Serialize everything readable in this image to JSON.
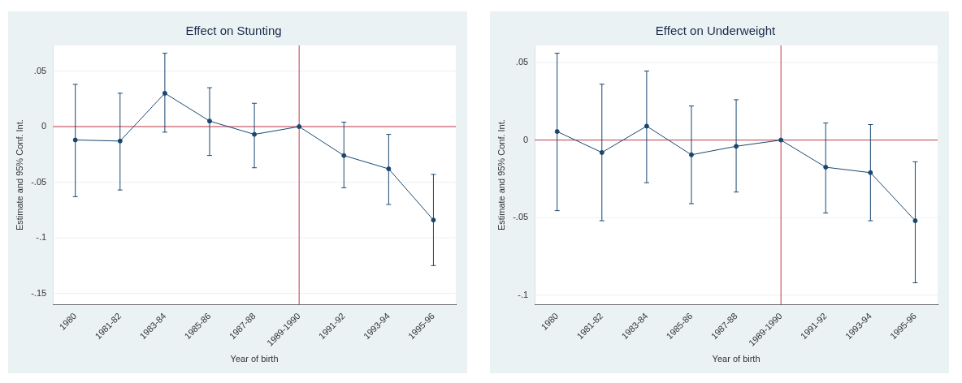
{
  "chart_data": [
    {
      "type": "line",
      "title": "Effect on Stunting",
      "xlabel": "Year of birth",
      "ylabel": "Estimate and 95% Conf. Int.",
      "categories": [
        "1980",
        "1981-82",
        "1983-84",
        "1985-86",
        "1987-88",
        "1989-1990",
        "1991-92",
        "1993-94",
        "1995-96"
      ],
      "series": [
        {
          "color": "#1a476f",
          "values": [
            -0.012,
            -0.013,
            0.03,
            0.005,
            -0.007,
            0,
            -0.026,
            -0.038,
            -0.084
          ],
          "errors": [
            [
              -0.063,
              0.038
            ],
            [
              -0.057,
              0.03
            ],
            [
              -0.005,
              0.066
            ],
            [
              -0.026,
              0.035
            ],
            [
              -0.037,
              0.021
            ],
            null,
            [
              -0.055,
              0.004
            ],
            [
              -0.07,
              -0.007
            ],
            [
              -0.125,
              -0.043
            ]
          ]
        }
      ],
      "ylim": [
        -0.16,
        0.073
      ],
      "yticks": [
        {
          "value": -0.15,
          "label": "-.15"
        },
        {
          "value": -0.1,
          "label": "-.1"
        },
        {
          "value": -0.05,
          "label": "-.05"
        },
        {
          "value": 0,
          "label": "0"
        },
        {
          "value": 0.05,
          "label": ".05"
        }
      ],
      "ref_lines": [
        {
          "axis": "y",
          "value": 0,
          "color": "#c0394b"
        },
        {
          "axis": "x",
          "value": "1989-1990",
          "color": "#c0394b"
        }
      ],
      "grid": "y",
      "marker": "circle",
      "line_style": "solid",
      "legend": false
    },
    {
      "type": "line",
      "title": "Effect on Underweight",
      "xlabel": "Year of birth",
      "ylabel": "Estimate and 95% Conf. Int.",
      "categories": [
        "1980",
        "1981-82",
        "1983-84",
        "1985-86",
        "1987-88",
        "1989-1990",
        "1991-92",
        "1993-94",
        "1995-96"
      ],
      "series": [
        {
          "color": "#1a476f",
          "values": [
            0.0055,
            -0.008,
            0.009,
            -0.0095,
            -0.004,
            0,
            -0.0175,
            -0.021,
            -0.052
          ],
          "errors": [
            [
              -0.0455,
              0.056
            ],
            [
              -0.052,
              0.036
            ],
            [
              -0.0275,
              0.0445
            ],
            [
              -0.041,
              0.022
            ],
            [
              -0.0335,
              0.026
            ],
            null,
            [
              -0.047,
              0.011
            ],
            [
              -0.052,
              0.01
            ],
            [
              -0.092,
              -0.014
            ]
          ]
        }
      ],
      "ylim": [
        -0.106,
        0.061
      ],
      "yticks": [
        {
          "value": -0.1,
          "label": "-.1"
        },
        {
          "value": -0.05,
          "label": "-.05"
        },
        {
          "value": 0,
          "label": "0"
        },
        {
          "value": 0.05,
          "label": ".05"
        }
      ],
      "ref_lines": [
        {
          "axis": "y",
          "value": 0,
          "color": "#c0394b"
        },
        {
          "axis": "x",
          "value": "1989-1990",
          "color": "#c0394b"
        }
      ],
      "grid": "y",
      "marker": "circle",
      "line_style": "solid",
      "legend": false
    }
  ]
}
